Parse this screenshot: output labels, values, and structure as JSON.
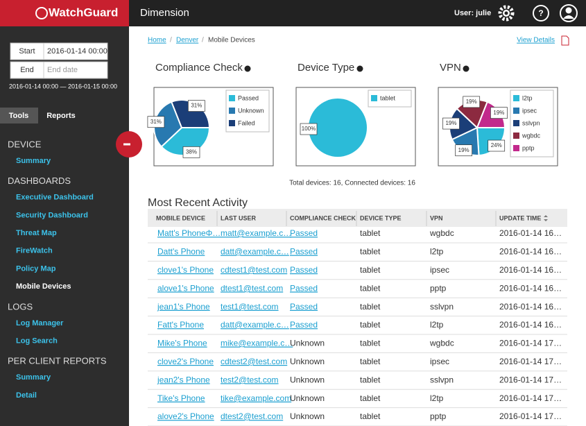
{
  "header": {
    "logo": "WatchGuard",
    "title": "Dimension",
    "user": "User: julie"
  },
  "sidebar": {
    "start_label": "Start",
    "start_value": "2016-01-14 00:00",
    "end_label": "End",
    "end_placeholder": "End date",
    "range": "2016-01-14 00:00 — 2016-01-15 00:00",
    "tabs": [
      "Tools",
      "Reports"
    ],
    "sections": [
      {
        "title": "DEVICE",
        "items": [
          "Summary"
        ]
      },
      {
        "title": "DASHBOARDS",
        "items": [
          "Executive Dashboard",
          "Security Dashboard",
          "Threat Map",
          "FireWatch",
          "Policy Map",
          "Mobile Devices"
        ]
      },
      {
        "title": "LOGS",
        "items": [
          "Log Manager",
          "Log Search"
        ]
      },
      {
        "title": "PER CLIENT REPORTS",
        "items": [
          "Summary",
          "Detail"
        ]
      }
    ]
  },
  "breadcrumb": [
    "Home",
    "Denver",
    "Mobile Devices"
  ],
  "view_details": "View Details",
  "charts": [
    {
      "type": "pie",
      "title": "Compliance Check",
      "categories": [
        "Passed",
        "Unknown",
        "Failed"
      ],
      "values": [
        38,
        31,
        31
      ],
      "value_labels": [
        "38%",
        "31%",
        "31%"
      ],
      "colors": [
        "#2bbbd8",
        "#2879b0",
        "#1b3e78"
      ]
    },
    {
      "type": "pie",
      "title": "Device Type",
      "categories": [
        "tablet"
      ],
      "values": [
        100
      ],
      "value_labels": [
        "100%"
      ],
      "colors": [
        "#2bbbd8"
      ]
    },
    {
      "type": "pie",
      "title": "VPN",
      "categories": [
        "l2tp",
        "ipsec",
        "sslvpn",
        "wgbdc",
        "pptp"
      ],
      "values": [
        24,
        19,
        19,
        19,
        19
      ],
      "value_labels": [
        "24%",
        "19%",
        "19%",
        "19%",
        "19%"
      ],
      "colors": [
        "#2bbbd8",
        "#2879b0",
        "#1b3e78",
        "#8c2a40",
        "#c2298c"
      ]
    }
  ],
  "summary": "Total devices: 16, Connected devices: 16",
  "table": {
    "title": "Most Recent Activity",
    "columns": [
      "MOBILE DEVICE",
      "LAST USER",
      "COMPLIANCE CHECK",
      "DEVICE TYPE",
      "VPN",
      "UPDATE TIME"
    ],
    "rows": [
      [
        "Matt's PhoneΦ…",
        "matt@example.c…",
        "Passed",
        "tablet",
        "wgbdc",
        "2016-01-14 16…"
      ],
      [
        "Datt's Phone",
        "datt@example.c…",
        "Passed",
        "tablet",
        "l2tp",
        "2016-01-14 16…"
      ],
      [
        "clove1's Phone",
        "cdtest1@test.com",
        "Passed",
        "tablet",
        "ipsec",
        "2016-01-14 16…"
      ],
      [
        "alove1's Phone",
        "dtest1@test.com",
        "Passed",
        "tablet",
        "pptp",
        "2016-01-14 16…"
      ],
      [
        "jean1's Phone",
        "test1@test.com",
        "Passed",
        "tablet",
        "sslvpn",
        "2016-01-14 16…"
      ],
      [
        "Fatt's Phone",
        "datt@example.c…",
        "Passed",
        "tablet",
        "l2tp",
        "2016-01-14 16…"
      ],
      [
        "Mike's Phone",
        "mike@example.c…",
        "Unknown",
        "tablet",
        "wgbdc",
        "2016-01-14 17…"
      ],
      [
        "clove2's Phone",
        "cdtest2@test.com",
        "Unknown",
        "tablet",
        "ipsec",
        "2016-01-14 17…"
      ],
      [
        "jean2's Phone",
        "test2@test.com",
        "Unknown",
        "tablet",
        "sslvpn",
        "2016-01-14 17…"
      ],
      [
        "Tike's Phone",
        "tike@example.com",
        "Unknown",
        "tablet",
        "l2tp",
        "2016-01-14 17…"
      ],
      [
        "alove2's Phone",
        "dtest2@test.com",
        "Unknown",
        "tablet",
        "pptp",
        "2016-01-14 17…"
      ]
    ]
  }
}
